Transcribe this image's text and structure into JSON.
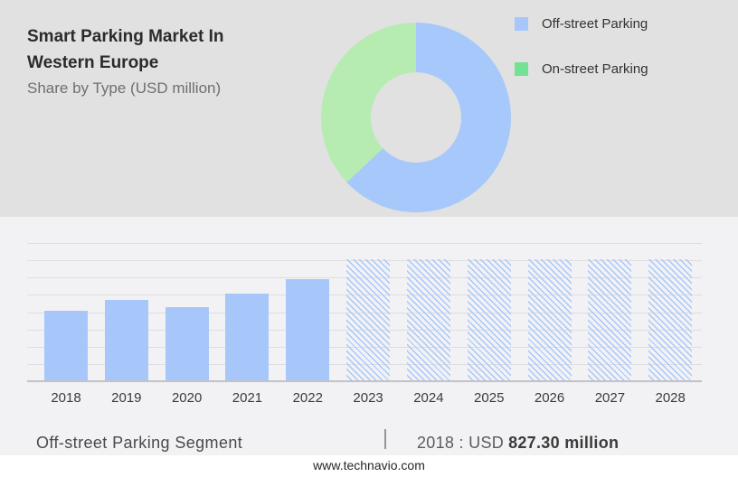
{
  "header": {
    "title": "Smart Parking Market In Western Europe",
    "subtitle": "Share by Type (USD million)"
  },
  "legend": {
    "items": [
      {
        "label": "Off-street Parking",
        "color": "#A7C7FB"
      },
      {
        "label": "On-street Parking",
        "color": "#74E294"
      }
    ]
  },
  "chart_data": [
    {
      "type": "pie",
      "subtype": "donut",
      "title": "Share by Type (USD million)",
      "labels": [
        "Off-street Parking",
        "On-street Parking"
      ],
      "values_pct": [
        63,
        37
      ],
      "colors": [
        "#A6C8FA",
        "#B6ECB2"
      ],
      "start_angle_deg": 0,
      "direction": "clockwise",
      "legend_position": "right"
    },
    {
      "type": "bar",
      "categories": [
        "2018",
        "2019",
        "2020",
        "2021",
        "2022",
        "2023",
        "2024",
        "2025",
        "2026",
        "2027",
        "2028"
      ],
      "values": [
        827.3,
        950,
        865,
        1020,
        1190,
        1420,
        1420,
        1420,
        1420,
        1420,
        1420
      ],
      "labeled_value": {
        "year": "2018",
        "text": "2018 : USD 827.30 million"
      },
      "estimation_note": "2019-2022 estimated from bar heights; 2023-2028 are uniform-height hatched forecast bars with no labeled values",
      "solid_categories": [
        "2018",
        "2019",
        "2020",
        "2021",
        "2022"
      ],
      "hatched_categories": [
        "2023",
        "2024",
        "2025",
        "2026",
        "2027",
        "2028"
      ],
      "ylim": [
        0,
        1600
      ],
      "gridline_step": 200,
      "grid": true,
      "bar_color": "#A7C7FB",
      "xlabel": "",
      "ylabel": ""
    }
  ],
  "footer": {
    "segment_label": "Off-street Parking Segment",
    "separator": "|",
    "stat_prefix": "2018 : USD",
    "stat_value": "827.30 million",
    "website": "www.technavio.com"
  }
}
